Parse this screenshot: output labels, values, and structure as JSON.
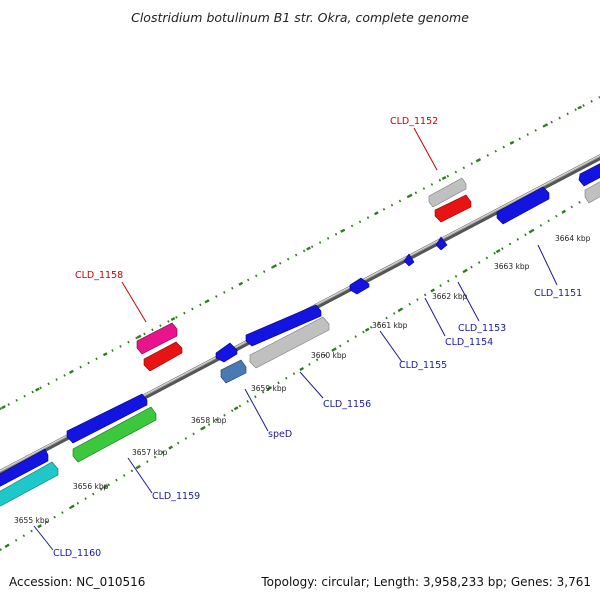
{
  "title": "Clostridium botulinum B1 str. Okra, complete genome",
  "footer": {
    "accession": "Accession: NC_010516",
    "summary": "Topology: circular; Length: 3,958,233 bp; Genes: 3,761"
  },
  "kbp_ticks": [
    {
      "label": "3655 kbp"
    },
    {
      "label": "3656 kbp"
    },
    {
      "label": "3657 kbp"
    },
    {
      "label": "3658 kbp"
    },
    {
      "label": "3659 kbp"
    },
    {
      "label": "3660 kbp"
    },
    {
      "label": "3661 kbp"
    },
    {
      "label": "3662 kbp"
    },
    {
      "label": "3663 kbp"
    },
    {
      "label": "3664 kbp"
    }
  ],
  "gene_labels": [
    {
      "text": "CLD_1152",
      "color": "#cc0000"
    },
    {
      "text": "CLD_1158",
      "color": "#cc0000"
    },
    {
      "text": "CLD_1151",
      "color": "#1a1aa0"
    },
    {
      "text": "CLD_1153",
      "color": "#1a1aa0"
    },
    {
      "text": "CLD_1154",
      "color": "#1a1aa0"
    },
    {
      "text": "CLD_1155",
      "color": "#1a1aa0"
    },
    {
      "text": "CLD_1156",
      "color": "#1a1aa0"
    },
    {
      "text": "speD",
      "color": "#1a1aa0"
    },
    {
      "text": "CLD_1159",
      "color": "#1a1aa0"
    },
    {
      "text": "CLD_1160",
      "color": "#1a1aa0"
    }
  ],
  "feature_colors": {
    "backbone": "#8c8c8c",
    "tick_dots": "#2e7d1e",
    "cds_forward": "#1414e0",
    "gray_gene": "#c0c0c0",
    "red_gene": "#e81414",
    "pink_gene": "#e8148c",
    "steelblue_gene": "#4a7ab4",
    "green_gene": "#3cc83c",
    "cyan_gene": "#1ec8c8"
  }
}
